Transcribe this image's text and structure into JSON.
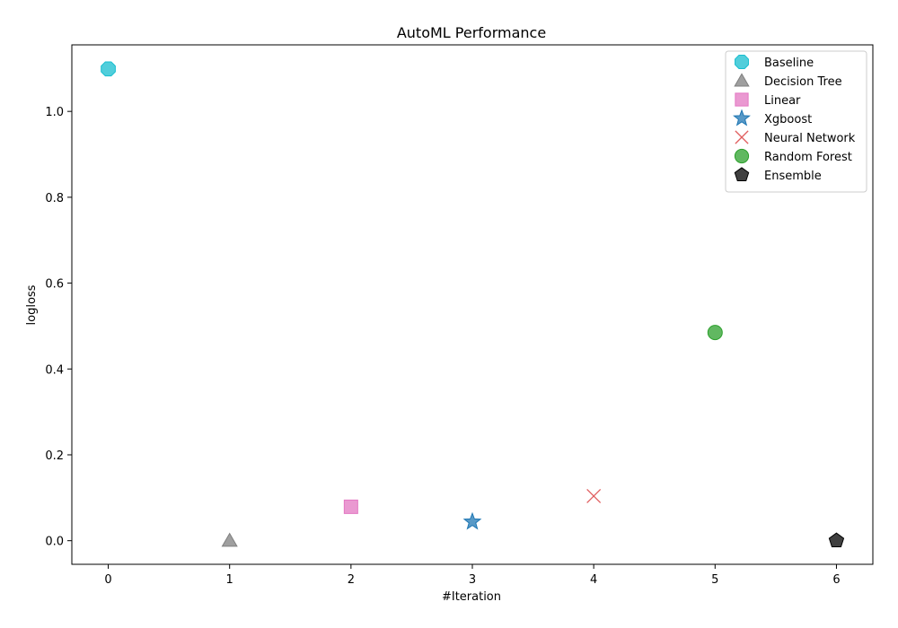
{
  "chart_data": {
    "type": "scatter",
    "title": "AutoML Performance",
    "xlabel": "#Iteration",
    "ylabel": "logloss",
    "xlim": [
      -0.3,
      6.3
    ],
    "ylim": [
      -0.055,
      1.155
    ],
    "xticks": [
      0,
      1,
      2,
      3,
      4,
      5,
      6
    ],
    "yticks": [
      0.0,
      0.2,
      0.4,
      0.6,
      0.8,
      1.0
    ],
    "ytick_labels": [
      "0.0",
      "0.2",
      "0.4",
      "0.6",
      "0.8",
      "1.0"
    ],
    "grid": false,
    "legend_position": "top-right",
    "series": [
      {
        "name": "Baseline",
        "marker": "octagon",
        "color": "#17becf",
        "x": [
          0
        ],
        "y": [
          1.099
        ]
      },
      {
        "name": "Decision Tree",
        "marker": "triangle",
        "color": "#7f7f7f",
        "x": [
          1
        ],
        "y": [
          0.0
        ]
      },
      {
        "name": "Linear",
        "marker": "square",
        "color": "#e377c2",
        "x": [
          2
        ],
        "y": [
          0.079
        ]
      },
      {
        "name": "Xgboost",
        "marker": "star",
        "color": "#1f77b4",
        "x": [
          3
        ],
        "y": [
          0.044
        ]
      },
      {
        "name": "Neural Network",
        "marker": "x",
        "color": "#d62728",
        "x": [
          4
        ],
        "y": [
          0.104
        ]
      },
      {
        "name": "Random Forest",
        "marker": "circle",
        "color": "#2ca02c",
        "x": [
          5
        ],
        "y": [
          0.485
        ]
      },
      {
        "name": "Ensemble",
        "marker": "pentagon",
        "color": "#000000",
        "x": [
          6
        ],
        "y": [
          0.0
        ]
      }
    ]
  }
}
